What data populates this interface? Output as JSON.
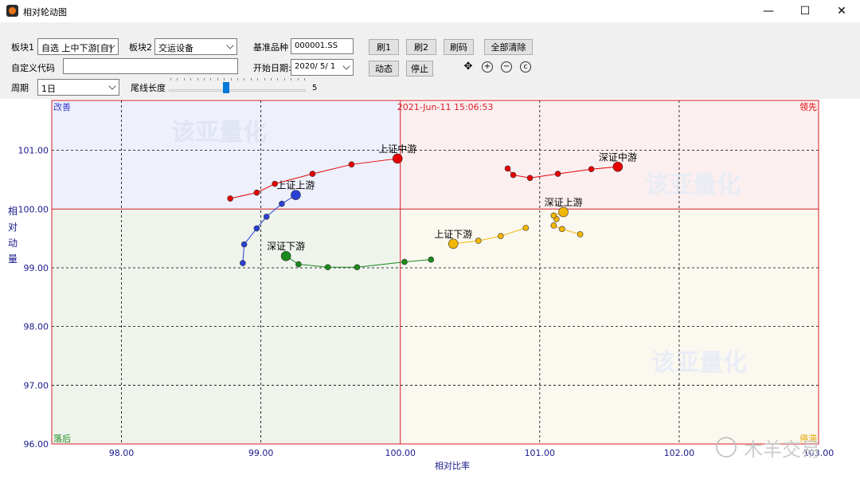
{
  "window": {
    "title": "相对轮动图",
    "minimize_label": "—",
    "maximize_label": "☐",
    "close_label": "✕"
  },
  "toolbar": {
    "board1_label": "板块1",
    "board1_value": "自选 上中下游[自]",
    "board2_label": "板块2",
    "board2_value": "交运设备",
    "benchmark_label": "基准品种",
    "benchmark_value": "000001.SS",
    "custom_code_label": "自定义代码",
    "custom_code_value": "",
    "start_date_label": "开始日期:",
    "start_date_value": "2020/ 5/ 1",
    "period_label": "周期",
    "period_value": "1日",
    "tail_label": "尾线长度",
    "tail_value": "5",
    "btn_refresh1": "刷1",
    "btn_refresh2": "刷2",
    "btn_refresh_code": "刷码",
    "btn_clear_all": "全部清除",
    "btn_animate": "动态",
    "btn_stop": "停止"
  },
  "icons": [
    "move-icon",
    "zoom-in-icon",
    "zoom-out-icon",
    "reset-icon"
  ],
  "chart_data": {
    "type": "scatter",
    "timestamp": "2021-Jun-11 15:06:53",
    "xlabel": "相对比率",
    "ylabel": "相对动量",
    "xlim": [
      97.5,
      103.0
    ],
    "ylim": [
      96.0,
      101.85
    ],
    "xticks": [
      "98.00",
      "99.00",
      "100.00",
      "101.00",
      "102.00",
      "103.00"
    ],
    "yticks": [
      "96.00",
      "97.00",
      "98.00",
      "99.00",
      "100.00",
      "101.00"
    ],
    "quadrants": {
      "top_left": "改善",
      "top_right": "领先",
      "bottom_left": "落后",
      "bottom_right": "停滞"
    },
    "watermark": "该亚量化",
    "footer_watermark": "木羊交易",
    "colors": {
      "red": "#e60000",
      "blue": "#2a3fd6",
      "green": "#1a8a1a",
      "yellow": "#f2b705",
      "quad_improving": "#eef0fb",
      "quad_leading": "#fbefef",
      "quad_lagging": "#eef3ec",
      "quad_weakening": "#fbf8f0",
      "axis_text": "#1a1a8c"
    },
    "series": [
      {
        "name": "上证中游",
        "color": "#e60000",
        "points": [
          [
            98.78,
            100.18
          ],
          [
            98.97,
            100.28
          ],
          [
            99.1,
            100.43
          ],
          [
            99.37,
            100.6
          ],
          [
            99.65,
            100.76
          ],
          [
            99.98,
            100.86
          ]
        ]
      },
      {
        "name": "深证中游",
        "color": "#e60000",
        "points": [
          [
            100.77,
            100.69
          ],
          [
            100.81,
            100.58
          ],
          [
            100.93,
            100.53
          ],
          [
            101.13,
            100.6
          ],
          [
            101.37,
            100.68
          ],
          [
            101.56,
            100.72
          ]
        ]
      },
      {
        "name": "上证上游",
        "color": "#2a3fd6",
        "points": [
          [
            98.87,
            99.08
          ],
          [
            98.88,
            99.4
          ],
          [
            98.97,
            99.67
          ],
          [
            99.04,
            99.87
          ],
          [
            99.15,
            100.09
          ],
          [
            99.25,
            100.24
          ]
        ]
      },
      {
        "name": "深证上游",
        "color": "#f2b705",
        "points": [
          [
            101.29,
            99.57
          ],
          [
            101.16,
            99.66
          ],
          [
            101.1,
            99.72
          ],
          [
            101.12,
            99.83
          ],
          [
            101.1,
            99.89
          ],
          [
            101.17,
            99.95
          ]
        ]
      },
      {
        "name": "上证下游",
        "color": "#f2b705",
        "points": [
          [
            100.9,
            99.68
          ],
          [
            100.72,
            99.54
          ],
          [
            100.56,
            99.46
          ],
          [
            100.38,
            99.41
          ]
        ]
      },
      {
        "name": "深证下游",
        "color": "#1a8a1a",
        "points": [
          [
            100.22,
            99.14
          ],
          [
            100.03,
            99.1
          ],
          [
            99.69,
            99.01
          ],
          [
            99.48,
            99.01
          ],
          [
            99.27,
            99.06
          ],
          [
            99.18,
            99.2
          ]
        ]
      }
    ]
  }
}
